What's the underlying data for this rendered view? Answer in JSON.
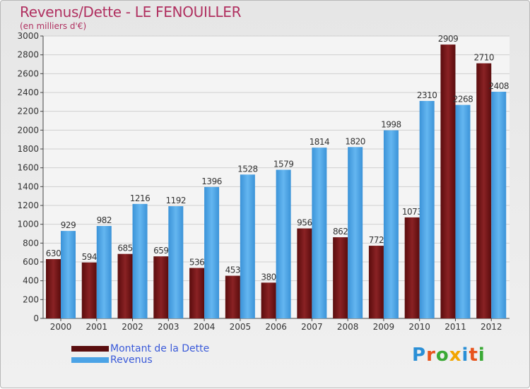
{
  "title": "Revenus/Dette - LE FENOUILLER",
  "subtitle": "(en milliers d'€)",
  "brand": {
    "text": "Proxiti",
    "letter_colors": [
      "#2a8fd6",
      "#e8541c",
      "#3aa935",
      "#f2a500",
      "#2a8fd6",
      "#e8541c",
      "#3aa935"
    ]
  },
  "chart_data": {
    "type": "bar",
    "title": "Revenus/Dette - LE FENOUILLER",
    "subtitle": "(en milliers d'€)",
    "categories": [
      "2000",
      "2001",
      "2002",
      "2003",
      "2004",
      "2005",
      "2006",
      "2007",
      "2008",
      "2009",
      "2010",
      "2011",
      "2012"
    ],
    "series": [
      {
        "name": "Montant de la Dette",
        "color": "#7a1516",
        "values": [
          630,
          594,
          685,
          659,
          536,
          453,
          380,
          956,
          862,
          772,
          1073,
          2909,
          2710
        ]
      },
      {
        "name": "Revenus",
        "color": "#4ba3e6",
        "values": [
          929,
          982,
          1216,
          1192,
          1396,
          1528,
          1579,
          1814,
          1820,
          1998,
          2310,
          2268,
          2408
        ]
      }
    ],
    "ylim": [
      0,
      3000
    ],
    "ytick_step": 200,
    "yticks": [
      "0",
      "200",
      "400",
      "600",
      "800",
      "1000",
      "1200",
      "1400",
      "1600",
      "1800",
      "2000",
      "2200",
      "2400",
      "2600",
      "2800",
      "3000"
    ],
    "grid": true,
    "legend": "bottom-left",
    "xlabel": "",
    "ylabel": ""
  }
}
